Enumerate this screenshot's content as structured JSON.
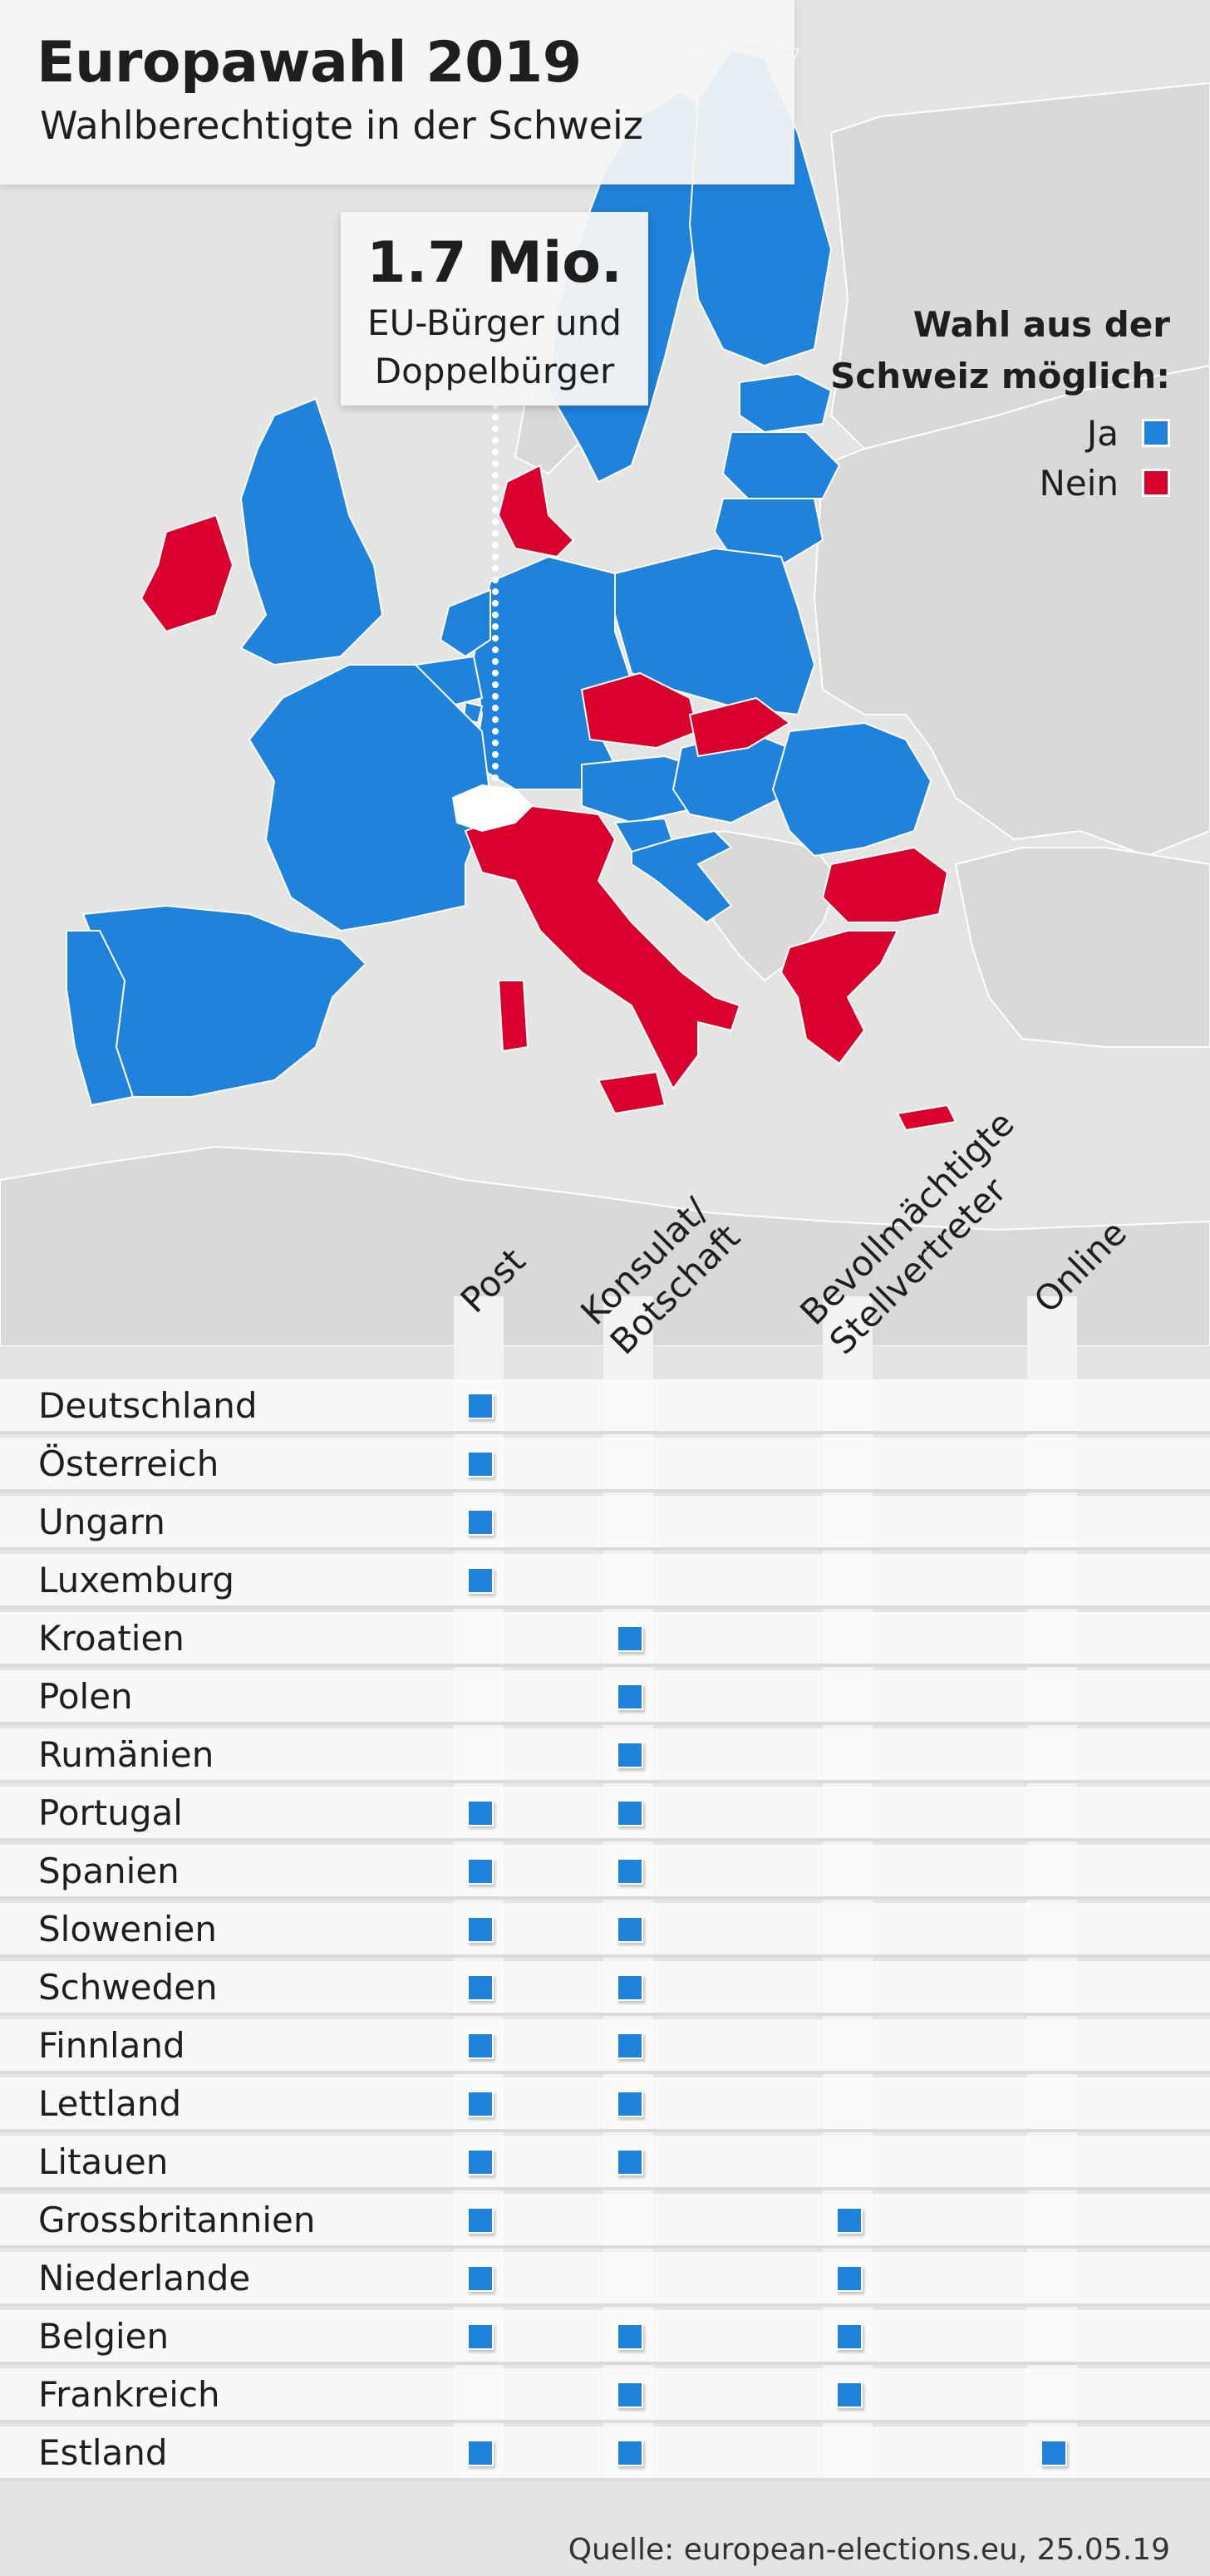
{
  "header": {
    "title": "Europawahl 2019",
    "subtitle": "Wahlberechtigte in der Schweiz"
  },
  "callout": {
    "value": "1.7 Mio.",
    "text": "EU-Bürger und\nDoppelbürger"
  },
  "legend": {
    "title": "Wahl aus der\nSchweiz möglich:",
    "items": [
      {
        "label": "Ja",
        "color": "#1f82db"
      },
      {
        "label": "Nein",
        "color": "#d9002e"
      }
    ]
  },
  "colors": {
    "yes": "#1f82db",
    "no": "#d9002e",
    "switzerland": "#ffffff",
    "other_land": "#d9d9d7",
    "sea": "#e4e4e2"
  },
  "map": {
    "yes": [
      "Deutschland",
      "Österreich",
      "Ungarn",
      "Luxemburg",
      "Kroatien",
      "Polen",
      "Rumänien",
      "Portugal",
      "Spanien",
      "Slowenien",
      "Schweden",
      "Finnland",
      "Lettland",
      "Litauen",
      "Grossbritannien",
      "Niederlande",
      "Belgien",
      "Frankreich",
      "Estland"
    ],
    "no": [
      "Irland",
      "Dänemark",
      "Tschechien",
      "Slowakei",
      "Italien",
      "Bulgarien",
      "Griechenland",
      "Malta",
      "Zypern"
    ],
    "highlight": "Schweiz"
  },
  "columns": [
    {
      "label": "Post"
    },
    {
      "label": "Konsulat/\nBotschaft"
    },
    {
      "label": "Bevollmächtigte\nStellvertreter"
    },
    {
      "label": "Online"
    }
  ],
  "rows": [
    {
      "country": "Deutschland",
      "methods": [
        true,
        false,
        false,
        false
      ]
    },
    {
      "country": "Österreich",
      "methods": [
        true,
        false,
        false,
        false
      ]
    },
    {
      "country": "Ungarn",
      "methods": [
        true,
        false,
        false,
        false
      ]
    },
    {
      "country": "Luxemburg",
      "methods": [
        true,
        false,
        false,
        false
      ]
    },
    {
      "country": "Kroatien",
      "methods": [
        false,
        true,
        false,
        false
      ]
    },
    {
      "country": "Polen",
      "methods": [
        false,
        true,
        false,
        false
      ]
    },
    {
      "country": "Rumänien",
      "methods": [
        false,
        true,
        false,
        false
      ]
    },
    {
      "country": "Portugal",
      "methods": [
        true,
        true,
        false,
        false
      ]
    },
    {
      "country": "Spanien",
      "methods": [
        true,
        true,
        false,
        false
      ]
    },
    {
      "country": "Slowenien",
      "methods": [
        true,
        true,
        false,
        false
      ]
    },
    {
      "country": "Schweden",
      "methods": [
        true,
        true,
        false,
        false
      ]
    },
    {
      "country": "Finnland",
      "methods": [
        true,
        true,
        false,
        false
      ]
    },
    {
      "country": "Lettland",
      "methods": [
        true,
        true,
        false,
        false
      ]
    },
    {
      "country": "Litauen",
      "methods": [
        true,
        true,
        false,
        false
      ]
    },
    {
      "country": "Grossbritannien",
      "methods": [
        true,
        false,
        true,
        false
      ]
    },
    {
      "country": "Niederlande",
      "methods": [
        true,
        false,
        true,
        false
      ]
    },
    {
      "country": "Belgien",
      "methods": [
        true,
        true,
        true,
        false
      ]
    },
    {
      "country": "Frankreich",
      "methods": [
        false,
        true,
        true,
        false
      ]
    },
    {
      "country": "Estland",
      "methods": [
        true,
        true,
        false,
        true
      ]
    }
  ],
  "source": "Quelle: european-elections.eu, 25.05.19"
}
